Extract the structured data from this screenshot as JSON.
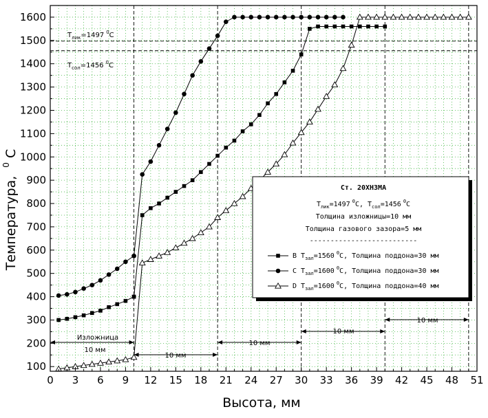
{
  "chart_data": {
    "type": "line",
    "xlabel": "Высота, мм",
    "ylabel": "Температура,",
    "ylabel_unit_sup": "0",
    "ylabel_unit": "C",
    "xlim": [
      0,
      51
    ],
    "ylim": [
      80,
      1650
    ],
    "xticks": [
      0,
      3,
      6,
      9,
      12,
      15,
      18,
      21,
      24,
      27,
      30,
      33,
      36,
      39,
      42,
      45,
      48,
      51
    ],
    "yticks": [
      100,
      200,
      300,
      400,
      500,
      600,
      700,
      800,
      900,
      1000,
      1100,
      1200,
      1300,
      1400,
      1500,
      1600
    ],
    "grid": "dotted green",
    "vertical_dashed_lines": [
      10,
      20,
      30,
      40,
      50
    ],
    "horizontal_dashed_lines": [
      1497,
      1456
    ],
    "annotations": {
      "tliq_pre": "T",
      "tliq_sub": "лик",
      "tliq_post": "=1497",
      "tliq_sup": "0",
      "tliq_unit": "C",
      "tsol_pre": "T",
      "tsol_sub": "сол",
      "tsol_post": "=1456",
      "tsol_sup": "0",
      "tsol_unit": "C",
      "mold_label": "Изложница",
      "mold_dim": "10 мм",
      "seg_dims": [
        "10 мм",
        "10 мм",
        "10 мм",
        "10 мм"
      ]
    },
    "legend": {
      "placement": "center-right",
      "title": "Ст. 20ХН3МА",
      "line2_a": "T",
      "line2_a_sub": "лик",
      "line2_a_val": "=1497",
      "line2_a_sup": "0",
      "line2_a_unit": "C, ",
      "line2_b": "T",
      "line2_b_sub": "сол",
      "line2_b_val": "=1456",
      "line2_b_sup": "0",
      "line2_b_unit": "C",
      "line3": "Толщина изложницы=10 мм",
      "line4": "Толщина газового зазора=5 мм",
      "separator": "--------------------------",
      "entries": [
        {
          "pre": "B T",
          "sub": "зал",
          "val": "=1560",
          "sup": "0",
          "post": "C, Толщина поддона=30 мм"
        },
        {
          "pre": "C T",
          "sub": "зал",
          "val": "=1600",
          "sup": "0",
          "post": "C, Толщина поддона=30 мм"
        },
        {
          "pre": "D T",
          "sub": "зал",
          "val": "=1600",
          "sup": "0",
          "post": "C, Толщина поддона=40 мм"
        }
      ]
    },
    "series": [
      {
        "marker": "square",
        "x": [
          1,
          2,
          3,
          4,
          5,
          6,
          7,
          8,
          9,
          10,
          10,
          11,
          12,
          13,
          14,
          15,
          16,
          17,
          18,
          19,
          20,
          21,
          22,
          23,
          24,
          25,
          26,
          27,
          28,
          29,
          30,
          31,
          32,
          33,
          34,
          35,
          36,
          37,
          38,
          39,
          40
        ],
        "y": [
          300,
          305,
          312,
          320,
          330,
          340,
          355,
          368,
          382,
          400,
          400,
          750,
          780,
          800,
          825,
          850,
          875,
          900,
          935,
          970,
          1005,
          1040,
          1070,
          1110,
          1140,
          1180,
          1230,
          1270,
          1320,
          1370,
          1440,
          1550,
          1560,
          1560,
          1560,
          1560,
          1560,
          1560,
          1560,
          1560,
          1560
        ]
      },
      {
        "marker": "circle",
        "x": [
          1,
          2,
          3,
          4,
          5,
          6,
          7,
          8,
          9,
          10,
          10,
          11,
          12,
          13,
          14,
          15,
          16,
          17,
          18,
          19,
          20,
          21,
          22,
          23,
          24,
          25,
          26,
          27,
          28,
          29,
          30,
          31,
          32,
          33,
          34,
          35
        ],
        "y": [
          405,
          410,
          420,
          435,
          450,
          470,
          495,
          520,
          550,
          575,
          575,
          925,
          980,
          1050,
          1120,
          1190,
          1270,
          1350,
          1410,
          1465,
          1520,
          1580,
          1600,
          1600,
          1600,
          1600,
          1600,
          1600,
          1600,
          1600,
          1600,
          1600,
          1600,
          1600,
          1600,
          1600
        ]
      },
      {
        "marker": "triangle",
        "x": [
          1,
          2,
          3,
          4,
          5,
          6,
          7,
          8,
          9,
          10,
          11,
          12,
          13,
          14,
          15,
          16,
          17,
          18,
          19,
          20,
          21,
          22,
          23,
          24,
          25,
          26,
          27,
          28,
          29,
          30,
          31,
          32,
          33,
          34,
          35,
          36,
          37,
          38,
          39,
          40,
          41,
          42,
          43,
          44,
          45,
          46,
          47,
          48,
          49,
          50
        ],
        "y": [
          90,
          95,
          100,
          105,
          110,
          115,
          120,
          125,
          130,
          140,
          545,
          560,
          575,
          590,
          610,
          630,
          650,
          675,
          700,
          740,
          770,
          800,
          830,
          865,
          900,
          935,
          970,
          1010,
          1060,
          1105,
          1150,
          1205,
          1260,
          1310,
          1380,
          1480,
          1600,
          1600,
          1600,
          1600,
          1600,
          1600,
          1600,
          1600,
          1600,
          1600,
          1600,
          1600,
          1600,
          1600
        ]
      }
    ]
  }
}
